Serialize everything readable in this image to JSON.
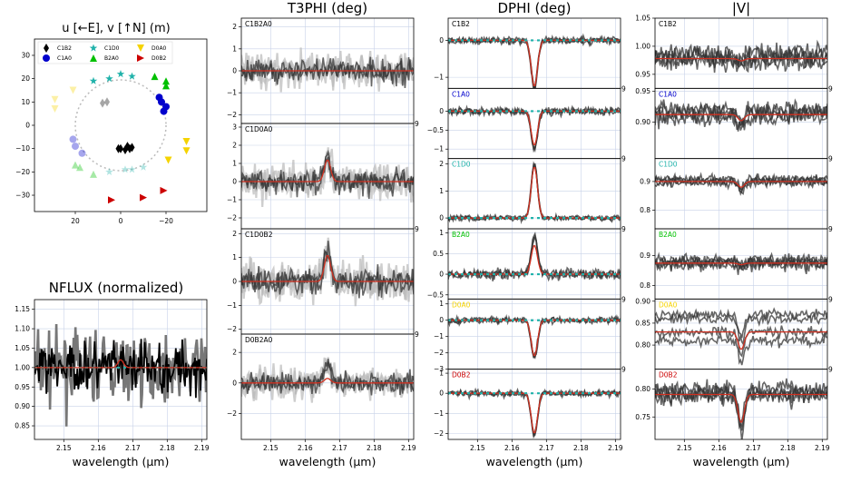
{
  "chart_data": [
    {
      "type": "scatter",
      "title": "u [←E], v [↑N] (m)",
      "xlim": [
        38,
        -38
      ],
      "ylim": [
        -37,
        37
      ],
      "xticks": [
        20,
        0,
        -20
      ],
      "xtick_labels": [
        "20",
        "0",
        "−20"
      ],
      "yticks": [
        30,
        20,
        10,
        0,
        -10,
        -20,
        -30
      ],
      "ytick_labels": [
        "30",
        "20",
        "10",
        "0",
        "−10",
        "−20",
        "−30"
      ],
      "circle_radius": 20,
      "legend": [
        {
          "name": "C1B2",
          "color": "#000000",
          "marker": "diamond"
        },
        {
          "name": "C1D0",
          "color": "#20b2aa",
          "marker": "star"
        },
        {
          "name": "D0A0",
          "color": "#f5d300",
          "marker": "down-triangle"
        },
        {
          "name": "C1A0",
          "color": "#0000cc",
          "marker": "circle"
        },
        {
          "name": "B2A0",
          "color": "#00c000",
          "marker": "up-triangle"
        },
        {
          "name": "D0B2",
          "color": "#cc0000",
          "marker": "right-triangle"
        }
      ],
      "series": [
        {
          "name": "C1B2",
          "color": "#000000",
          "marker": "diamond",
          "points": [
            [
              -3,
              -9
            ],
            [
              -5,
              -9.5
            ],
            [
              -4,
              -10
            ],
            [
              1,
              -10
            ],
            [
              -2,
              -10.5
            ],
            [
              0,
              -10
            ]
          ],
          "mirror": [
            [
              6,
              10
            ],
            [
              8,
              9.5
            ]
          ]
        },
        {
          "name": "C1A0",
          "color": "#0000cc",
          "marker": "circle",
          "points": [
            [
              -17,
              12
            ],
            [
              -18,
              10
            ],
            [
              -20,
              8
            ],
            [
              -19,
              6
            ]
          ],
          "mirror": [
            [
              20,
              -9
            ],
            [
              21,
              -6
            ],
            [
              17,
              -12
            ]
          ]
        },
        {
          "name": "C1D0",
          "color": "#20b2aa",
          "marker": "star",
          "points": [
            [
              -5,
              21
            ],
            [
              5,
              20
            ],
            [
              12,
              19
            ],
            [
              0,
              22
            ]
          ],
          "mirror": [
            [
              -10,
              -18
            ],
            [
              -5,
              -19
            ],
            [
              5,
              -20
            ],
            [
              -2,
              -19
            ]
          ]
        },
        {
          "name": "B2A0",
          "color": "#00c000",
          "marker": "up-triangle",
          "points": [
            [
              -20,
              19
            ],
            [
              -20,
              17
            ],
            [
              -15,
              21
            ]
          ],
          "mirror": [
            [
              18,
              -18
            ],
            [
              20,
              -17
            ],
            [
              12,
              -21
            ]
          ]
        },
        {
          "name": "D0A0",
          "color": "#f5d300",
          "marker": "down-triangle",
          "points": [
            [
              -29,
              -7
            ],
            [
              -29,
              -11
            ],
            [
              -21,
              -15
            ]
          ],
          "mirror": [
            [
              29,
              11
            ],
            [
              29,
              7
            ],
            [
              21,
              15
            ]
          ]
        },
        {
          "name": "D0B2",
          "color": "#cc0000",
          "marker": "right-triangle",
          "points": [
            [
              4,
              -32
            ],
            [
              -10,
              -31
            ],
            [
              -19,
              -28
            ]
          ],
          "mirror": []
        }
      ]
    },
    {
      "type": "line",
      "title": "NFLUX (normalized)",
      "xlabel": "wavelength (μm)",
      "xlim": [
        2.1415,
        2.1915
      ],
      "ylim": [
        0.815,
        1.175
      ],
      "xticks": [
        2.15,
        2.16,
        2.17,
        2.18,
        2.19
      ],
      "yticks": [
        0.85,
        0.9,
        0.95,
        1.0,
        1.05,
        1.1,
        1.15
      ],
      "baseline": 1.0,
      "noise": 0.065,
      "model_feature": {
        "center": 2.1665,
        "amplitude": 0.02,
        "width": 0.0008
      }
    },
    {
      "type": "line",
      "title": "T3PHI (deg)",
      "xlabel": "wavelength (μm)",
      "xlim": [
        2.1415,
        2.1915
      ],
      "xticks": [
        2.15,
        2.16,
        2.17,
        2.18,
        2.19
      ],
      "panels": [
        {
          "label": "C1B2A0",
          "label_color": "#000000",
          "ylim": [
            -2.4,
            2.4
          ],
          "yticks": [
            -2,
            -1,
            0,
            1,
            2
          ],
          "noise": 0.45,
          "feature": 0.1,
          "model": 0.0
        },
        {
          "label": "C1D0A0",
          "label_color": "#000000",
          "ylim": [
            -2.6,
            3.2
          ],
          "yticks": [
            -2,
            -1,
            0,
            1,
            2,
            3
          ],
          "noise": 0.55,
          "feature": 1.3,
          "model": 1.2
        },
        {
          "label": "C1D0B2",
          "label_color": "#000000",
          "ylim": [
            -2.2,
            2.2
          ],
          "yticks": [
            -2,
            -1,
            0,
            1,
            2
          ],
          "noise": 0.45,
          "feature": 1.3,
          "model": 1.1
        },
        {
          "label": "D0B2A0",
          "label_color": "#000000",
          "ylim": [
            -3.7,
            3.2
          ],
          "yticks": [
            -2,
            0,
            2
          ],
          "noise": 0.55,
          "feature": 1.2,
          "model": 0.3
        }
      ]
    },
    {
      "type": "line",
      "title": "DPHI (deg)",
      "xlabel": "wavelength (μm)",
      "xlim": [
        2.1415,
        2.1915
      ],
      "xticks": [
        2.15,
        2.16,
        2.17,
        2.18,
        2.19
      ],
      "panels": [
        {
          "label": "C1B2",
          "label_color": "#000000",
          "ylim": [
            -1.3,
            0.6
          ],
          "yticks": [
            -1,
            0
          ],
          "noise": 0.08,
          "feature": -1.3,
          "model": -1.25
        },
        {
          "label": "C1A0",
          "label_color": "#0000cc",
          "ylim": [
            -1.25,
            0.6
          ],
          "yticks": [
            -1,
            -0.5,
            0
          ],
          "ytick_labels": [
            "−1",
            "−0.5",
            "0"
          ],
          "noise": 0.08,
          "feature": -1.0,
          "model": -0.9
        },
        {
          "label": "C1D0",
          "label_color": "#20b2aa",
          "ylim": [
            -0.4,
            2.2
          ],
          "yticks": [
            0,
            1,
            2
          ],
          "noise": 0.08,
          "feature": 2.0,
          "model": 1.9
        },
        {
          "label": "B2A0",
          "label_color": "#00c000",
          "ylim": [
            -0.6,
            1.1
          ],
          "yticks": [
            -0.5,
            0,
            0.5,
            1
          ],
          "noise": 0.1,
          "feature": 0.9,
          "model": 0.7
        },
        {
          "label": "D0A0",
          "label_color": "#f5d300",
          "ylim": [
            -3.0,
            1.3
          ],
          "yticks": [
            -3,
            -2,
            -1,
            0,
            1
          ],
          "noise": 0.15,
          "feature": -2.3,
          "model": -2.2
        },
        {
          "label": "D0B2",
          "label_color": "#cc0000",
          "ylim": [
            -2.3,
            1.2
          ],
          "yticks": [
            -2,
            -1,
            0,
            1
          ],
          "noise": 0.12,
          "feature": -2.1,
          "model": -2.0
        }
      ]
    },
    {
      "type": "line",
      "title": "|V|",
      "xlabel": "wavelength (μm)",
      "xlim": [
        2.1415,
        2.1915
      ],
      "xticks": [
        2.15,
        2.16,
        2.17,
        2.18,
        2.19
      ],
      "panels": [
        {
          "label": "C1B2",
          "label_color": "#000000",
          "ylim": [
            0.925,
            1.05
          ],
          "yticks": [
            0.95,
            1.0,
            1.05
          ],
          "ytick_labels": [
            "0.95",
            "1.00",
            "1.05"
          ],
          "base": 0.978,
          "noise": 0.015,
          "feature": -0.01,
          "model": -0.004
        },
        {
          "label": "C1A0",
          "label_color": "#0000cc",
          "ylim": [
            0.84,
            0.955
          ],
          "yticks": [
            0.9,
            0.95
          ],
          "ytick_labels": [
            "0.90",
            "0.95"
          ],
          "base": 0.912,
          "noise": 0.012,
          "feature": -0.02,
          "model": -0.01
        },
        {
          "label": "C1D0",
          "label_color": "#20b2aa",
          "ylim": [
            0.735,
            0.98
          ],
          "yticks": [
            0.8,
            0.9
          ],
          "ytick_labels": [
            "0.8",
            "0.9"
          ],
          "base": 0.9,
          "noise": 0.012,
          "feature": -0.03,
          "model": -0.02
        },
        {
          "label": "B2A0",
          "label_color": "#00c000",
          "ylim": [
            0.755,
            0.99
          ],
          "yticks": [
            0.8,
            0.9
          ],
          "ytick_labels": [
            "0.8",
            "0.9"
          ],
          "base": 0.875,
          "noise": 0.018,
          "feature": -0.02,
          "model": -0.005
        },
        {
          "label": "D0A0",
          "label_color": "#f5d300",
          "ylim": [
            0.745,
            0.905
          ],
          "yticks": [
            0.8,
            0.85,
            0.9
          ],
          "ytick_labels": [
            "0.80",
            "0.85",
            "0.90"
          ],
          "base": 0.83,
          "noise": 0.01,
          "feature": -0.05,
          "model": -0.04
        },
        {
          "label": "D0B2",
          "label_color": "#cc0000",
          "ylim": [
            0.71,
            0.835
          ],
          "yticks": [
            0.75,
            0.8
          ],
          "ytick_labels": [
            "0.75",
            "0.80"
          ],
          "base": 0.79,
          "noise": 0.012,
          "feature": -0.06,
          "model": -0.05
        }
      ]
    }
  ],
  "tick_format_x": [
    "2.15",
    "2.16",
    "2.17",
    "2.18",
    "2.19"
  ],
  "colors": {
    "data": "#000000",
    "model": "#d03020",
    "continuum": "#20b2aa",
    "grid": "#c8d2e8",
    "spectrum_gray": "#8a8a8a"
  }
}
